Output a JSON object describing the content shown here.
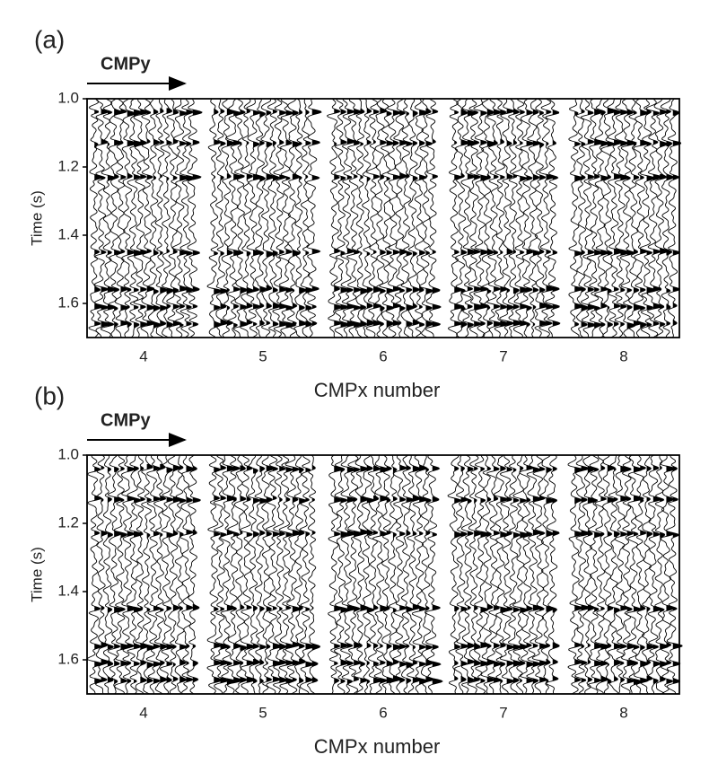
{
  "chart_data": [
    {
      "type": "wiggle",
      "panel_label": "(a)",
      "annotation": "CMPy",
      "x_label": "CMPx number",
      "y_label": "Time (s)",
      "categories": [
        "4",
        "5",
        "6",
        "7",
        "8"
      ],
      "ylim": [
        1.0,
        1.7
      ],
      "yticks": [
        {
          "value": 1.0,
          "label": "1.0"
        },
        1.2,
        1.4,
        1.6
      ],
      "events": [
        1.04,
        1.13,
        1.23,
        1.45,
        1.56,
        1.61,
        1.66
      ],
      "color": "#000000"
    },
    {
      "type": "wiggle",
      "panel_label": "(b)",
      "annotation": "CMPy",
      "x_label": "CMPx number",
      "y_label": "Time (s)",
      "categories": [
        "4",
        "5",
        "6",
        "7",
        "8"
      ],
      "ylim": [
        1.0,
        1.7
      ],
      "yticks": [
        {
          "value": 1.0,
          "label": "1.0"
        },
        1.2,
        1.4,
        1.6
      ],
      "events": [
        1.04,
        1.13,
        1.23,
        1.45,
        1.56,
        1.61,
        1.66
      ],
      "color": "#000000"
    }
  ]
}
